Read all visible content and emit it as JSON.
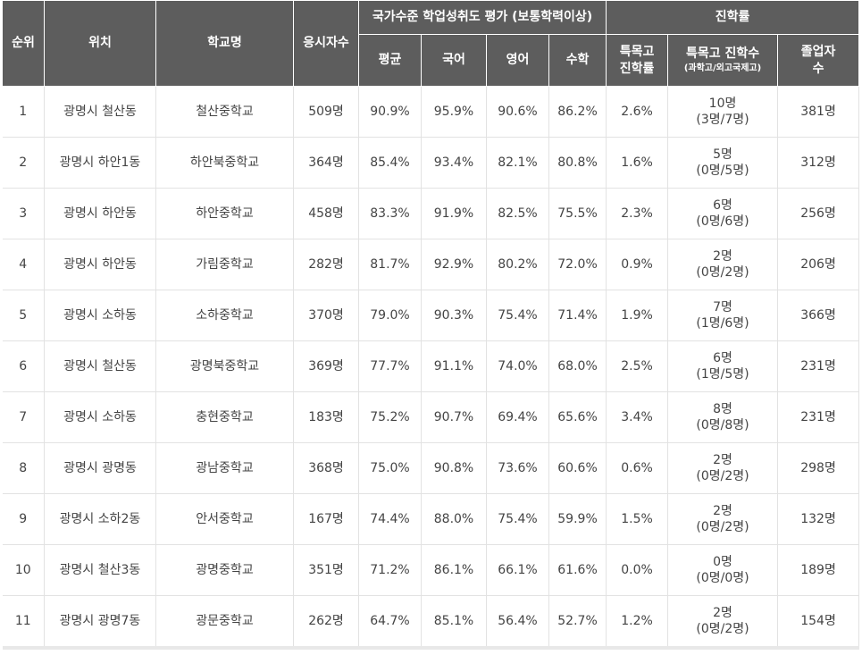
{
  "headers": {
    "rank": "순위",
    "location": "위치",
    "school": "학교명",
    "applicants": "응시자수",
    "assessment_group": "국가수준 학업성취도 평가 (보통학력이상)",
    "average": "평균",
    "korean": "국어",
    "english": "영어",
    "math": "수학",
    "advancement_group": "진학률",
    "special_rate_line1": "특목고",
    "special_rate_line2": "진학률",
    "special_count_line1": "특목고 진학수",
    "special_count_line2": "(과학고/외고국제고)",
    "graduates_line1": "졸업자",
    "graduates_line2": "수"
  },
  "rows": [
    {
      "rank": "1",
      "location": "광명시 철산동",
      "school": "철산중학교",
      "applicants": "509명",
      "average": "90.9%",
      "korean": "95.9%",
      "english": "90.6%",
      "math": "86.2%",
      "special_rate": "2.6%",
      "special_count": "10명",
      "special_breakdown": "(3명/7명)",
      "graduates": "381명"
    },
    {
      "rank": "2",
      "location": "광명시 하안1동",
      "school": "하안북중학교",
      "applicants": "364명",
      "average": "85.4%",
      "korean": "93.4%",
      "english": "82.1%",
      "math": "80.8%",
      "special_rate": "1.6%",
      "special_count": "5명",
      "special_breakdown": "(0명/5명)",
      "graduates": "312명"
    },
    {
      "rank": "3",
      "location": "광명시 하안동",
      "school": "하안중학교",
      "applicants": "458명",
      "average": "83.3%",
      "korean": "91.9%",
      "english": "82.5%",
      "math": "75.5%",
      "special_rate": "2.3%",
      "special_count": "6명",
      "special_breakdown": "(0명/6명)",
      "graduates": "256명"
    },
    {
      "rank": "4",
      "location": "광명시 하안동",
      "school": "가림중학교",
      "applicants": "282명",
      "average": "81.7%",
      "korean": "92.9%",
      "english": "80.2%",
      "math": "72.0%",
      "special_rate": "0.9%",
      "special_count": "2명",
      "special_breakdown": "(0명/2명)",
      "graduates": "206명"
    },
    {
      "rank": "5",
      "location": "광명시 소하동",
      "school": "소하중학교",
      "applicants": "370명",
      "average": "79.0%",
      "korean": "90.3%",
      "english": "75.4%",
      "math": "71.4%",
      "special_rate": "1.9%",
      "special_count": "7명",
      "special_breakdown": "(1명/6명)",
      "graduates": "366명"
    },
    {
      "rank": "6",
      "location": "광명시 철산동",
      "school": "광명북중학교",
      "applicants": "369명",
      "average": "77.7%",
      "korean": "91.1%",
      "english": "74.0%",
      "math": "68.0%",
      "special_rate": "2.5%",
      "special_count": "6명",
      "special_breakdown": "(1명/5명)",
      "graduates": "231명"
    },
    {
      "rank": "7",
      "location": "광명시 소하동",
      "school": "충현중학교",
      "applicants": "183명",
      "average": "75.2%",
      "korean": "90.7%",
      "english": "69.4%",
      "math": "65.6%",
      "special_rate": "3.4%",
      "special_count": "8명",
      "special_breakdown": "(0명/8명)",
      "graduates": "231명"
    },
    {
      "rank": "8",
      "location": "광명시 광명동",
      "school": "광남중학교",
      "applicants": "368명",
      "average": "75.0%",
      "korean": "90.8%",
      "english": "73.6%",
      "math": "60.6%",
      "special_rate": "0.6%",
      "special_count": "2명",
      "special_breakdown": "(0명/2명)",
      "graduates": "298명"
    },
    {
      "rank": "9",
      "location": "광명시 소하2동",
      "school": "안서중학교",
      "applicants": "167명",
      "average": "74.4%",
      "korean": "88.0%",
      "english": "75.4%",
      "math": "59.9%",
      "special_rate": "1.5%",
      "special_count": "2명",
      "special_breakdown": "(0명/2명)",
      "graduates": "132명"
    },
    {
      "rank": "10",
      "location": "광명시 철산3동",
      "school": "광명중학교",
      "applicants": "351명",
      "average": "71.2%",
      "korean": "86.1%",
      "english": "66.1%",
      "math": "61.6%",
      "special_rate": "0.0%",
      "special_count": "0명",
      "special_breakdown": "(0명/0명)",
      "graduates": "189명"
    },
    {
      "rank": "11",
      "location": "광명시 광명7동",
      "school": "광문중학교",
      "applicants": "262명",
      "average": "64.7%",
      "korean": "85.1%",
      "english": "56.4%",
      "math": "52.7%",
      "special_rate": "1.2%",
      "special_count": "2명",
      "special_breakdown": "(0명/2명)",
      "graduates": "154명"
    }
  ]
}
